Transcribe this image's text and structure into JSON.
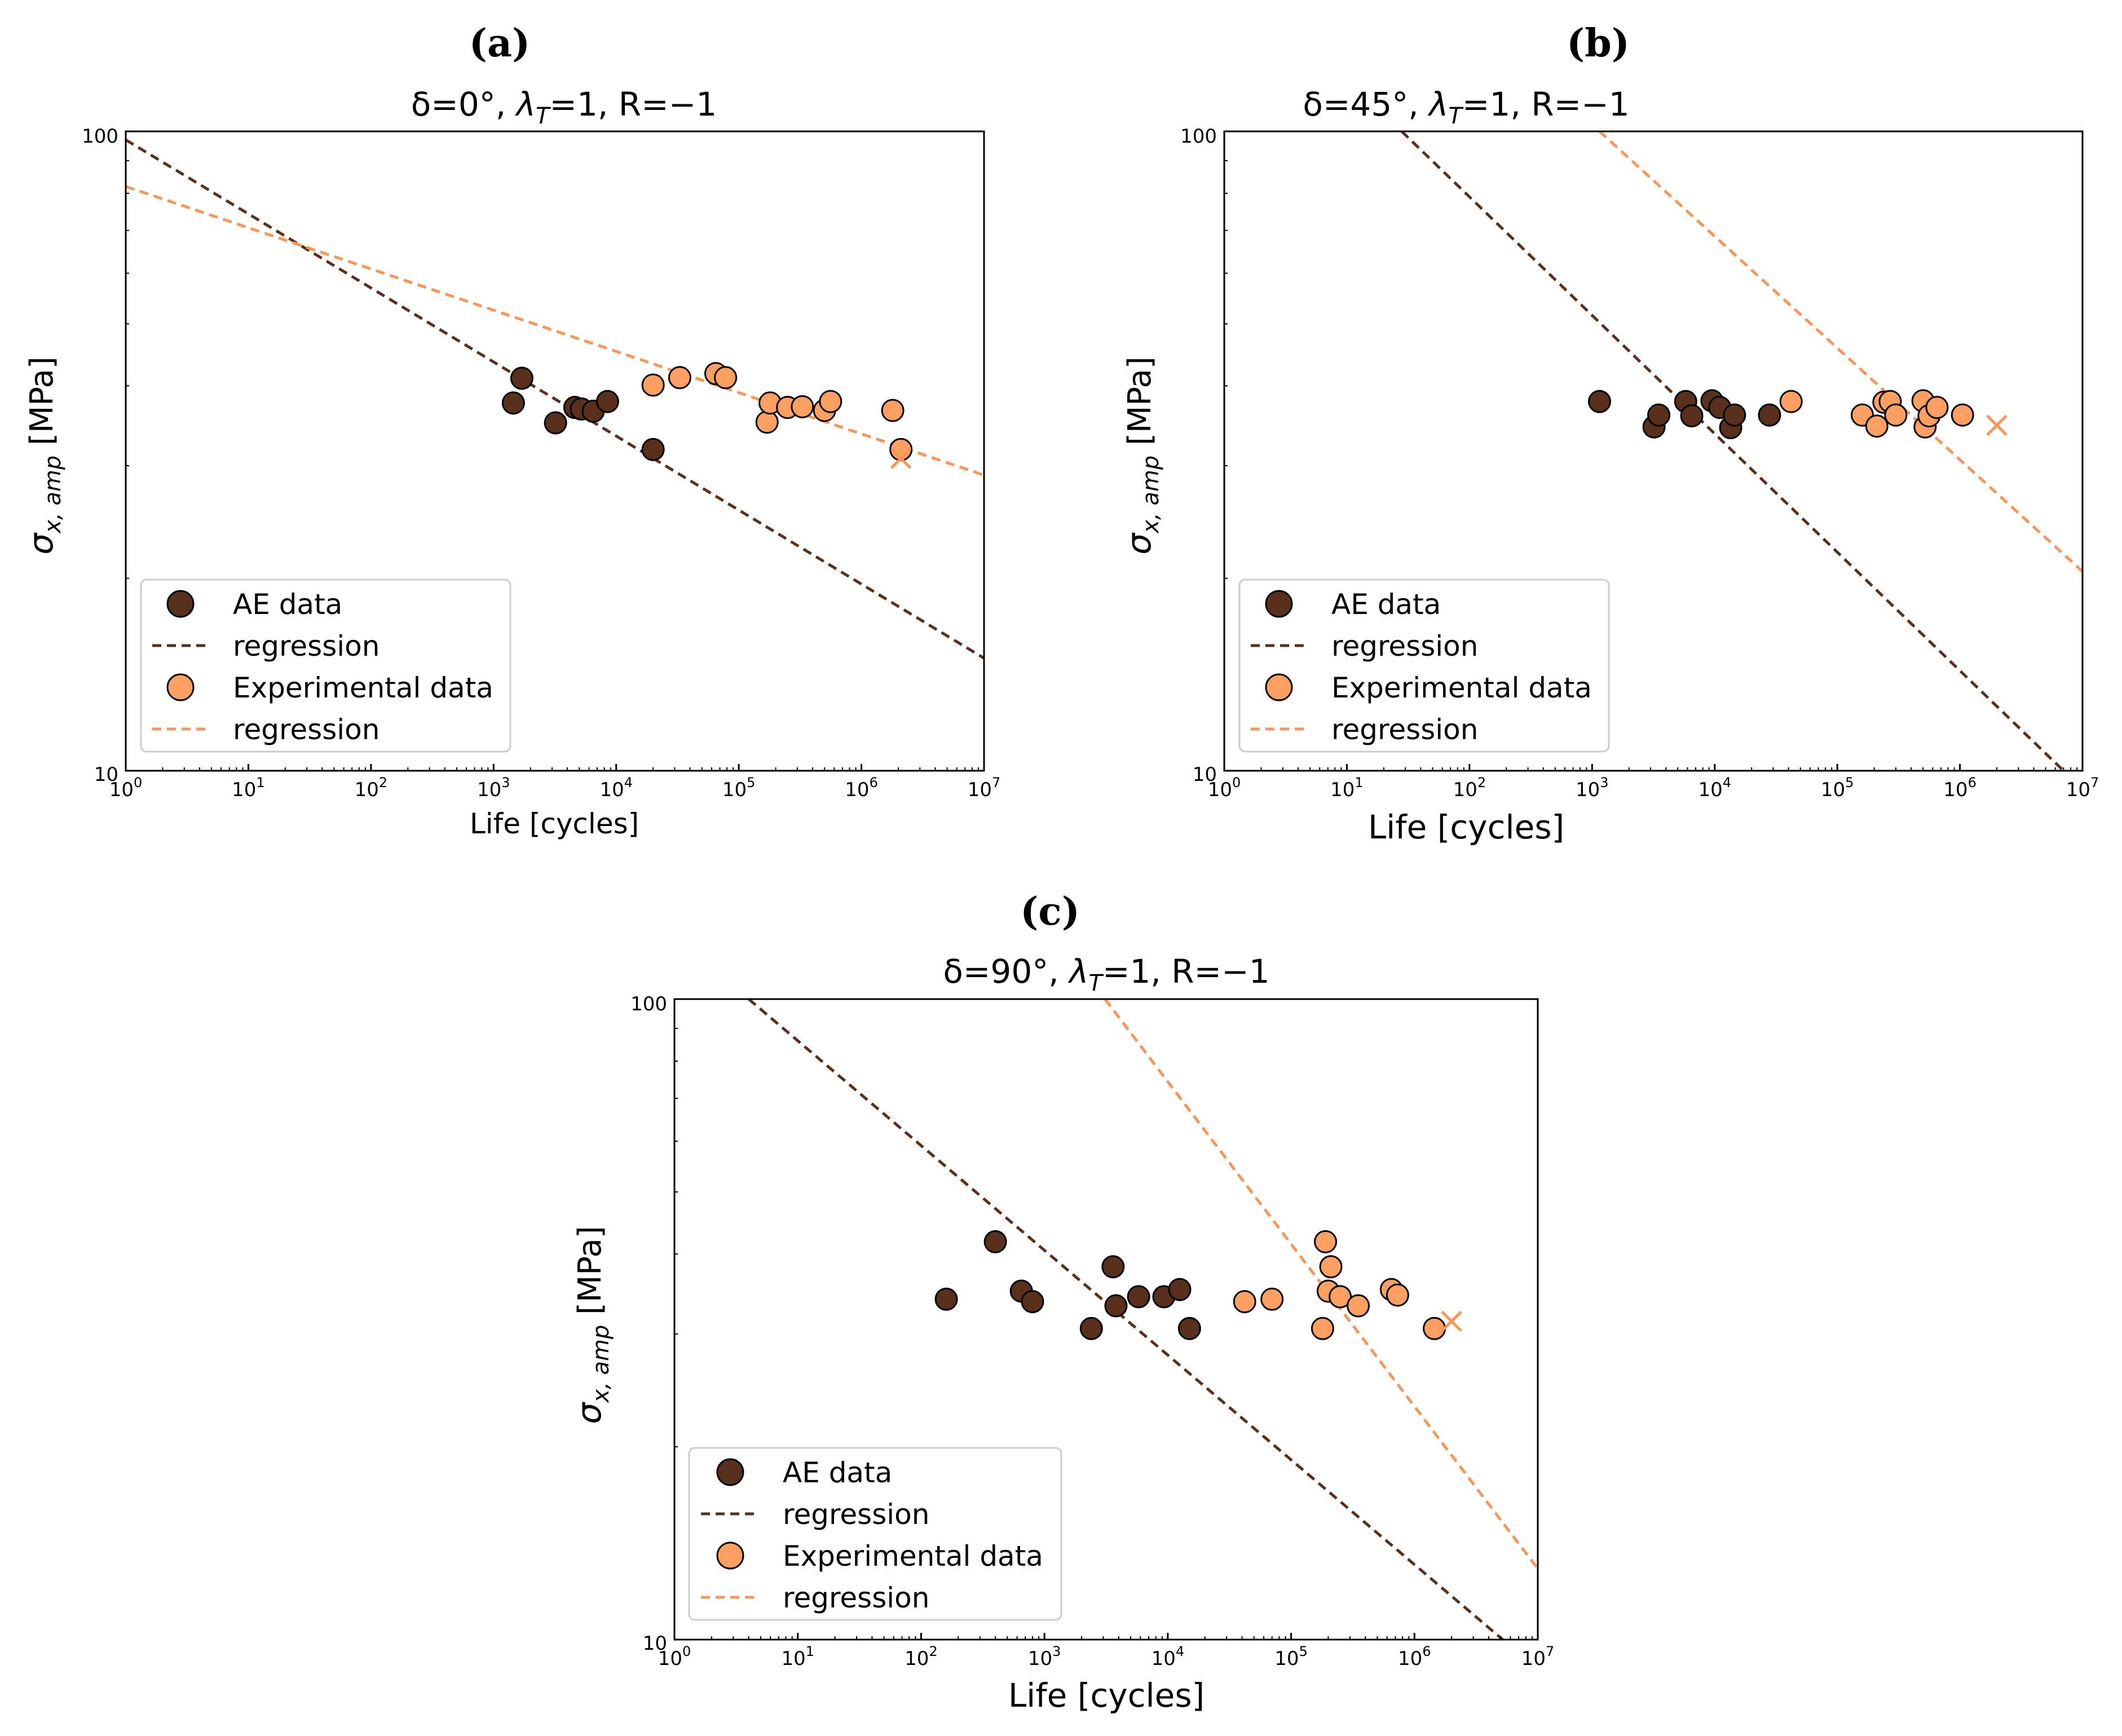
{
  "chart_data": [
    {
      "type": "scatter",
      "panel": "(a)",
      "title": "δ=0°, λT=1, R=−1",
      "title_parts": {
        "pre": "δ=0°, ",
        "sym": "λ",
        "sub": "T",
        "post": "=1, R=−1"
      },
      "xlabel": "Life [cycles]",
      "ylabel": "σx, amp [MPa]",
      "ylabel_parts": {
        "sym": "σ",
        "sub": "x, amp",
        "post": " [MPa]"
      },
      "xscale": "log",
      "yscale": "log",
      "xlim": [
        1,
        10000000
      ],
      "ylim": [
        10,
        100
      ],
      "ytick_labels": [
        "10",
        "100"
      ],
      "legend_position": "lower-left",
      "legend": [
        "AE data",
        "regression",
        "Experimental data",
        "regression"
      ],
      "series": [
        {
          "name": "AE data",
          "kind": "points",
          "points": [
            [
              1450,
              37.6
            ],
            [
              1700,
              41.1
            ],
            [
              3200,
              35.0
            ],
            [
              4600,
              37.0
            ],
            [
              5200,
              36.8
            ],
            [
              6500,
              36.5
            ],
            [
              8500,
              37.8
            ],
            [
              20000,
              31.8
            ]
          ]
        },
        {
          "name": "regression",
          "kind": "line",
          "line": [
            [
              1,
              97
            ],
            [
              10000000,
              15
            ]
          ]
        },
        {
          "name": "Experimental data",
          "kind": "points",
          "points": [
            [
              20000,
              40.1
            ],
            [
              33000,
              41.2
            ],
            [
              65000,
              41.8
            ],
            [
              78000,
              41.2
            ],
            [
              170000,
              35.1
            ],
            [
              180000,
              37.6
            ],
            [
              250000,
              37.0
            ],
            [
              330000,
              37.1
            ],
            [
              500000,
              36.6
            ],
            [
              560000,
              37.8
            ],
            [
              1800000,
              36.6
            ],
            [
              2100000,
              31.8
            ]
          ]
        },
        {
          "name": "regression",
          "kind": "line",
          "line": [
            [
              1,
              82
            ],
            [
              10000000,
              29
            ]
          ]
        },
        {
          "name": "run-out",
          "kind": "cross",
          "points": [
            [
              2100000,
              30.8
            ]
          ]
        }
      ]
    },
    {
      "type": "scatter",
      "panel": "(b)",
      "title": "δ=45°, λT=1, R=−1",
      "title_parts": {
        "pre": "δ=45°, ",
        "sym": "λ",
        "sub": "T",
        "post": "=1, R=−1"
      },
      "xlabel": "Life [cycles]",
      "ylabel": "σx, amp [MPa]",
      "ylabel_parts": {
        "sym": "σ",
        "sub": "x, amp",
        "post": " [MPa]"
      },
      "xscale": "log",
      "yscale": "log",
      "xlim": [
        1,
        10000000
      ],
      "ylim": [
        10,
        100
      ],
      "ytick_labels": [
        "10",
        "100"
      ],
      "legend_position": "lower-left",
      "legend": [
        "AE data",
        "regression",
        "Experimental data",
        "regression"
      ],
      "series": [
        {
          "name": "AE data",
          "kind": "points",
          "points": [
            [
              1150,
              37.8
            ],
            [
              3200,
              34.5
            ],
            [
              3500,
              36.0
            ],
            [
              5800,
              37.8
            ],
            [
              6500,
              35.9
            ],
            [
              9500,
              37.9
            ],
            [
              11000,
              37.0
            ],
            [
              13500,
              34.4
            ],
            [
              14500,
              36.0
            ],
            [
              28000,
              36.0
            ]
          ]
        },
        {
          "name": "regression",
          "kind": "line",
          "line": [
            [
              28,
              100
            ],
            [
              7000000,
              10
            ]
          ]
        },
        {
          "name": "Experimental data",
          "kind": "points",
          "points": [
            [
              42000,
              37.8
            ],
            [
              160000,
              36.0
            ],
            [
              210000,
              34.6
            ],
            [
              240000,
              37.7
            ],
            [
              270000,
              37.8
            ],
            [
              300000,
              36.0
            ],
            [
              500000,
              37.9
            ],
            [
              520000,
              34.5
            ],
            [
              560000,
              35.9
            ],
            [
              650000,
              37.0
            ],
            [
              1050000,
              36.0
            ]
          ]
        },
        {
          "name": "regression",
          "kind": "line",
          "line": [
            [
              1150,
              100
            ],
            [
              10000000,
              20.5
            ]
          ]
        },
        {
          "name": "run-out",
          "kind": "cross",
          "points": [
            [
              2000000,
              34.7
            ]
          ]
        }
      ]
    },
    {
      "type": "scatter",
      "panel": "(c)",
      "title": "δ=90°, λT=1, R=−1",
      "title_parts": {
        "pre": "δ=90°, ",
        "sym": "λ",
        "sub": "T",
        "post": "=1, R=−1"
      },
      "xlabel": "Life [cycles]",
      "ylabel": "σx, amp [MPa]",
      "ylabel_parts": {
        "sym": "σ",
        "sub": "x, amp",
        "post": " [MPa]"
      },
      "xscale": "log",
      "yscale": "log",
      "xlim": [
        1,
        10000000
      ],
      "ylim": [
        10,
        100
      ],
      "ytick_labels": [
        "10",
        "100"
      ],
      "legend_position": "lower-left",
      "legend": [
        "AE data",
        "regression",
        "Experimental data",
        "regression"
      ],
      "series": [
        {
          "name": "AE data",
          "kind": "points",
          "points": [
            [
              160,
              34.0
            ],
            [
              400,
              41.8
            ],
            [
              650,
              35.0
            ],
            [
              800,
              33.7
            ],
            [
              2400,
              30.6
            ],
            [
              3600,
              38.2
            ],
            [
              3800,
              33.2
            ],
            [
              5800,
              34.3
            ],
            [
              9300,
              34.3
            ],
            [
              12500,
              35.2
            ],
            [
              15000,
              30.6
            ]
          ]
        },
        {
          "name": "regression",
          "kind": "line",
          "line": [
            [
              4,
              100
            ],
            [
              5200000,
              10
            ]
          ]
        },
        {
          "name": "Experimental data",
          "kind": "points",
          "points": [
            [
              42000,
              33.7
            ],
            [
              70000,
              34.0
            ],
            [
              180000,
              30.6
            ],
            [
              190000,
              41.8
            ],
            [
              200000,
              35.0
            ],
            [
              210000,
              38.2
            ],
            [
              250000,
              34.3
            ],
            [
              350000,
              33.2
            ],
            [
              650000,
              35.2
            ],
            [
              730000,
              34.5
            ],
            [
              1450000,
              30.6
            ]
          ]
        },
        {
          "name": "regression",
          "kind": "line",
          "line": [
            [
              3100,
              100
            ],
            [
              10000000,
              12.9
            ]
          ]
        },
        {
          "name": "run-out",
          "kind": "cross",
          "points": [
            [
              2000000,
              31.4
            ]
          ]
        }
      ]
    }
  ],
  "colors": {
    "ae": "#58301c",
    "experimental": "#ff9f62",
    "experimental_line": "#fb9555",
    "axis": "#000000"
  }
}
